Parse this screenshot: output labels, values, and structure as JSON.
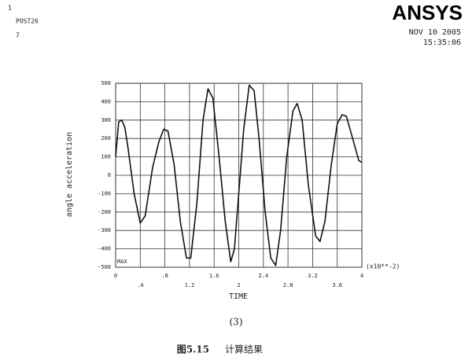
{
  "chart_data": {
    "type": "line",
    "plot_number": "1",
    "program": "POST26",
    "variable_number": "7",
    "logo": "ANSYS",
    "date": "NOV 10 2005",
    "time": "15:35:06",
    "ylabel": "angle acceleration",
    "xlabel": "TIME",
    "x_multiplier": "(x10**-2)",
    "corner_label": "MAX",
    "subfigure_label": "(3)",
    "figure_number": "图5.15",
    "caption": "计算结果",
    "color": "#111111",
    "grid": true,
    "x": [
      0,
      0.05,
      0.1,
      0.15,
      0.2,
      0.3,
      0.4,
      0.48,
      0.6,
      0.7,
      0.78,
      0.85,
      0.95,
      1.05,
      1.15,
      1.22,
      1.32,
      1.42,
      1.5,
      1.58,
      1.68,
      1.78,
      1.87,
      1.93,
      2.0,
      2.08,
      2.17,
      2.25,
      2.33,
      2.43,
      2.52,
      2.6,
      2.68,
      2.78,
      2.88,
      2.95,
      3.03,
      3.13,
      3.25,
      3.32,
      3.4,
      3.5,
      3.6,
      3.68,
      3.75,
      3.85,
      3.95,
      4.0
    ],
    "values": [
      100,
      290,
      300,
      260,
      150,
      -100,
      -260,
      -220,
      40,
      180,
      250,
      240,
      60,
      -250,
      -450,
      -450,
      -150,
      300,
      470,
      420,
      100,
      -250,
      -470,
      -400,
      -100,
      250,
      490,
      460,
      200,
      -200,
      -450,
      -490,
      -300,
      100,
      350,
      390,
      300,
      -50,
      -330,
      -360,
      -250,
      50,
      280,
      330,
      320,
      200,
      80,
      70
    ],
    "xlim": [
      0,
      4
    ],
    "ylim": [
      -500,
      500
    ],
    "xticks": [
      0,
      {
        "value": 0.4,
        "label": ".4"
      },
      {
        "value": 0.8,
        "label": ".8"
      },
      1.2,
      1.6,
      2,
      2.4,
      2.8,
      3.2,
      3.6,
      4
    ],
    "yticks": [
      -500,
      -400,
      -300,
      -200,
      -100,
      0,
      100,
      200,
      300,
      400,
      500
    ]
  }
}
